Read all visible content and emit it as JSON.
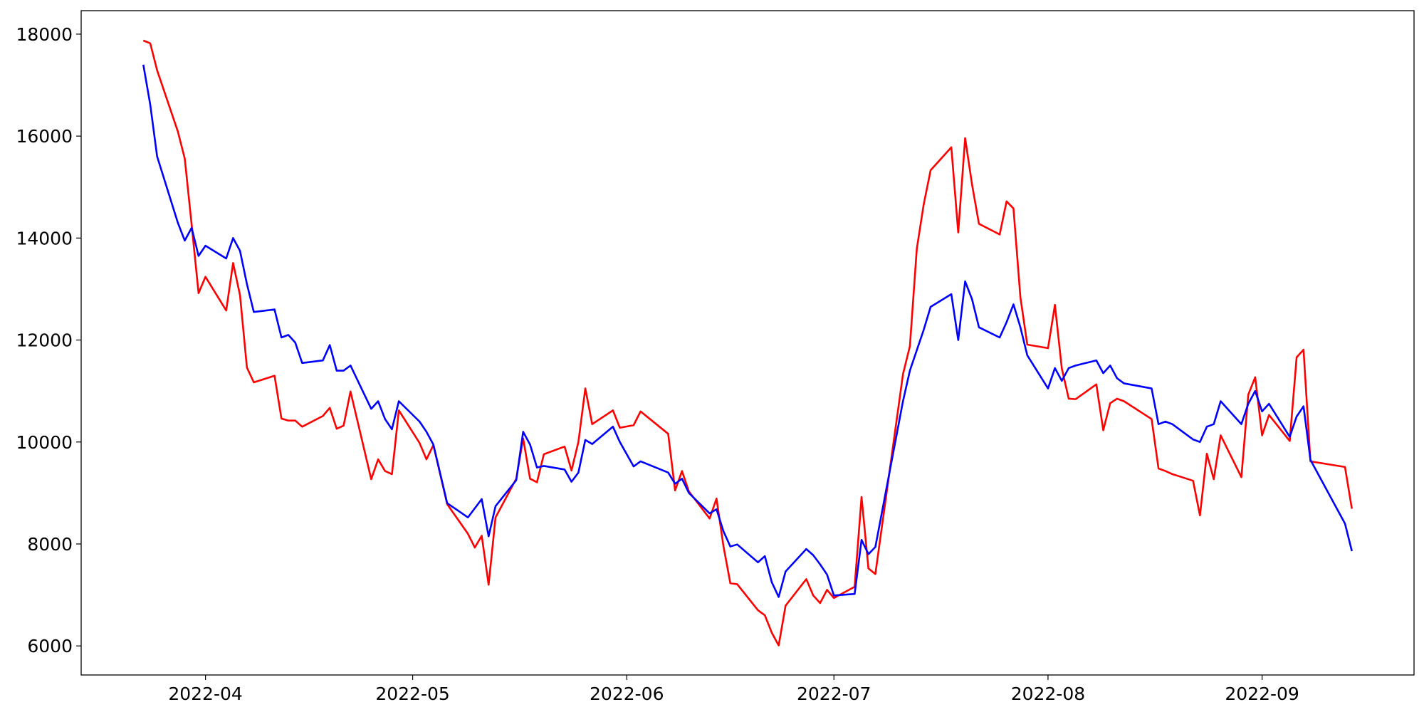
{
  "chart_data": {
    "type": "line",
    "x": [
      "2022-03-23",
      "2022-03-24",
      "2022-03-25",
      "2022-03-28",
      "2022-03-29",
      "2022-03-30",
      "2022-03-31",
      "2022-04-01",
      "2022-04-04",
      "2022-04-05",
      "2022-04-06",
      "2022-04-07",
      "2022-04-08",
      "2022-04-11",
      "2022-04-12",
      "2022-04-13",
      "2022-04-14",
      "2022-04-15",
      "2022-04-18",
      "2022-04-19",
      "2022-04-20",
      "2022-04-21",
      "2022-04-22",
      "2022-04-25",
      "2022-04-26",
      "2022-04-27",
      "2022-04-28",
      "2022-04-29",
      "2022-05-02",
      "2022-05-03",
      "2022-05-04",
      "2022-05-06",
      "2022-05-09",
      "2022-05-10",
      "2022-05-11",
      "2022-05-12",
      "2022-05-13",
      "2022-05-16",
      "2022-05-17",
      "2022-05-18",
      "2022-05-19",
      "2022-05-20",
      "2022-05-23",
      "2022-05-24",
      "2022-05-25",
      "2022-05-26",
      "2022-05-27",
      "2022-05-30",
      "2022-05-31",
      "2022-06-02",
      "2022-06-03",
      "2022-06-07",
      "2022-06-08",
      "2022-06-09",
      "2022-06-10",
      "2022-06-13",
      "2022-06-14",
      "2022-06-15",
      "2022-06-16",
      "2022-06-17",
      "2022-06-20",
      "2022-06-21",
      "2022-06-22",
      "2022-06-23",
      "2022-06-24",
      "2022-06-27",
      "2022-06-28",
      "2022-06-29",
      "2022-06-30",
      "2022-07-01",
      "2022-07-04",
      "2022-07-05",
      "2022-07-06",
      "2022-07-07",
      "2022-07-11",
      "2022-07-12",
      "2022-07-13",
      "2022-07-14",
      "2022-07-15",
      "2022-07-18",
      "2022-07-19",
      "2022-07-20",
      "2022-07-21",
      "2022-07-22",
      "2022-07-25",
      "2022-07-26",
      "2022-07-27",
      "2022-07-28",
      "2022-07-29",
      "2022-08-01",
      "2022-08-02",
      "2022-08-03",
      "2022-08-04",
      "2022-08-05",
      "2022-08-08",
      "2022-08-09",
      "2022-08-10",
      "2022-08-11",
      "2022-08-12",
      "2022-08-16",
      "2022-08-17",
      "2022-08-18",
      "2022-08-19",
      "2022-08-22",
      "2022-08-23",
      "2022-08-24",
      "2022-08-25",
      "2022-08-26",
      "2022-08-29",
      "2022-08-30",
      "2022-08-31",
      "2022-09-01",
      "2022-09-02",
      "2022-09-05",
      "2022-09-06",
      "2022-09-07",
      "2022-09-08",
      "2022-09-13",
      "2022-09-14"
    ],
    "series": [
      {
        "color": "#ff0000",
        "values": [
          17875,
          17820,
          17290,
          16090,
          15560,
          14260,
          12920,
          13240,
          12580,
          13510,
          12880,
          11460,
          11170,
          11300,
          10460,
          10420,
          10420,
          10300,
          10510,
          10670,
          10260,
          10320,
          10990,
          9270,
          9660,
          9430,
          9370,
          10620,
          9980,
          9660,
          9940,
          8780,
          8200,
          7930,
          8160,
          7200,
          8520,
          9280,
          10070,
          9280,
          9210,
          9760,
          9910,
          9440,
          10000,
          11050,
          10350,
          10620,
          10280,
          10330,
          10600,
          10160,
          9050,
          9430,
          9030,
          8500,
          8890,
          7960,
          7230,
          7210,
          6700,
          6600,
          6260,
          6010,
          6790,
          7310,
          6990,
          6840,
          7100,
          6940,
          7160,
          8920,
          7520,
          7410,
          11330,
          11880,
          13790,
          14660,
          15330,
          15780,
          14110,
          15960,
          15050,
          14280,
          14070,
          14720,
          14580,
          12840,
          11910,
          11840,
          12690,
          11440,
          10850,
          10840,
          11130,
          10230,
          10760,
          10850,
          10800,
          10450,
          9480,
          9430,
          9370,
          9240,
          8560,
          9770,
          9270,
          10130,
          9310,
          10930,
          11270,
          10130,
          10530,
          10020,
          11660,
          11810,
          9620,
          9510,
          8690
        ]
      },
      {
        "color": "#0000ff",
        "values": [
          17400,
          16620,
          15600,
          14300,
          13950,
          14200,
          13650,
          13850,
          13600,
          14000,
          13750,
          13100,
          12550,
          12600,
          12050,
          12100,
          11950,
          11550,
          11600,
          11900,
          11400,
          11400,
          11500,
          10650,
          10800,
          10450,
          10250,
          10800,
          10400,
          10200,
          9950,
          8800,
          8520,
          8700,
          8880,
          8150,
          8740,
          9250,
          10200,
          9950,
          9500,
          9530,
          9460,
          9220,
          9400,
          10040,
          9960,
          10300,
          10000,
          9520,
          9620,
          9400,
          9180,
          9280,
          9000,
          8600,
          8680,
          8250,
          7950,
          7990,
          7640,
          7760,
          7250,
          6960,
          7460,
          7900,
          7780,
          7600,
          7400,
          6990,
          7020,
          8080,
          7800,
          7940,
          10800,
          11400,
          11800,
          12200,
          12650,
          12900,
          12000,
          13150,
          12800,
          12250,
          12050,
          12350,
          12700,
          12250,
          11700,
          11050,
          11450,
          11200,
          11450,
          11500,
          11600,
          11350,
          11500,
          11250,
          11150,
          11050,
          10350,
          10400,
          10350,
          10050,
          10000,
          10300,
          10350,
          10800,
          10350,
          10750,
          11000,
          10600,
          10750,
          10100,
          10500,
          10700,
          9650,
          8400,
          7860
        ]
      }
    ],
    "xlim": [
      "2022-03-14",
      "2022-09-23"
    ],
    "xticks": [
      {
        "value": "2022-04-01",
        "label": "2022-04"
      },
      {
        "value": "2022-05-01",
        "label": "2022-05"
      },
      {
        "value": "2022-06-01",
        "label": "2022-06"
      },
      {
        "value": "2022-07-01",
        "label": "2022-07"
      },
      {
        "value": "2022-08-01",
        "label": "2022-08"
      },
      {
        "value": "2022-09-01",
        "label": "2022-09"
      }
    ],
    "ylim": [
      5430,
      18460
    ],
    "yticks": [
      6000,
      8000,
      10000,
      12000,
      14000,
      16000,
      18000
    ],
    "grid": false
  }
}
